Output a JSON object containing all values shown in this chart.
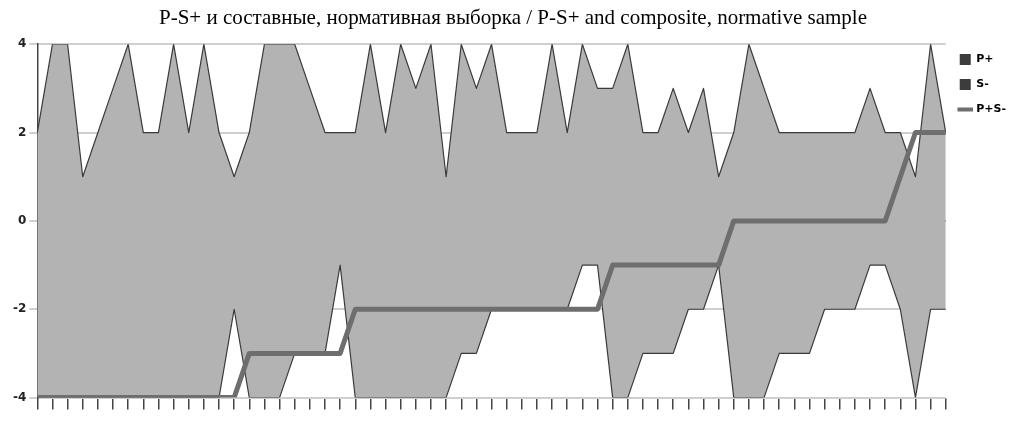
{
  "chart_data": {
    "type": "area",
    "title": "P-S+ и составные, нормативная выборка / P-S+ and composite, normative sample",
    "categories": [
      null,
      null,
      null,
      null,
      null,
      null,
      null,
      null,
      null,
      null,
      null,
      null,
      null,
      null,
      null,
      null,
      null,
      null,
      null,
      null,
      null,
      null,
      null,
      null,
      null,
      null,
      null,
      null,
      null,
      null,
      null,
      null,
      null,
      null,
      null,
      null,
      null,
      null,
      null,
      null,
      null,
      null,
      null,
      null,
      null,
      null,
      null,
      null,
      null,
      null,
      null,
      null,
      null,
      null,
      null,
      null,
      null,
      null,
      null,
      null,
      null
    ],
    "series": [
      {
        "name": "P+",
        "color": "#b3b3b3",
        "values": [
          2,
          4,
          4,
          1,
          2,
          3,
          4,
          2,
          2,
          4,
          2,
          4,
          2,
          1,
          2,
          4,
          4,
          4,
          3,
          2,
          2,
          2,
          4,
          2,
          4,
          3,
          4,
          1,
          4,
          3,
          4,
          2,
          2,
          2,
          4,
          2,
          4,
          3,
          3,
          4,
          2,
          2,
          3,
          2,
          3,
          1,
          2,
          4,
          3,
          2,
          2,
          2,
          2,
          2,
          2,
          3,
          2,
          2,
          1,
          4,
          2
        ]
      },
      {
        "name": "S-",
        "color": "#b3b3b3",
        "values": [
          -4,
          -4,
          -4,
          -4,
          -4,
          -4,
          -4,
          -4,
          -4,
          -4,
          -4,
          -4,
          -4,
          -2,
          -4,
          -4,
          -4,
          -3,
          -3,
          -3,
          -1,
          -4,
          -4,
          -4,
          -4,
          -4,
          -4,
          -4,
          -3,
          -3,
          -2,
          -2,
          -2,
          -2,
          -2,
          -2,
          -1,
          -1,
          -4,
          -4,
          -3,
          -3,
          -3,
          -2,
          -2,
          -1,
          -4,
          -4,
          -4,
          -3,
          -3,
          -3,
          -2,
          -2,
          -2,
          -1,
          -1,
          -2,
          -4,
          -2,
          -2
        ]
      },
      {
        "name": "P+S-",
        "type": "line",
        "color": "#6e6e6e",
        "values": [
          -4,
          -4,
          -4,
          -4,
          -4,
          -4,
          -4,
          -4,
          -4,
          -4,
          -4,
          -4,
          -4,
          -4,
          -3,
          -3,
          -3,
          -3,
          -3,
          -3,
          -3,
          -2,
          -2,
          -2,
          -2,
          -2,
          -2,
          -2,
          -2,
          -2,
          -2,
          -2,
          -2,
          -2,
          -2,
          -2,
          -2,
          -2,
          -1,
          -1,
          -1,
          -1,
          -1,
          -1,
          -1,
          -1,
          0,
          0,
          0,
          0,
          0,
          0,
          0,
          0,
          0,
          0,
          0,
          1,
          2,
          2,
          2
        ]
      }
    ],
    "ylim": [
      -4,
      4
    ],
    "yticks": [
      -4,
      -2,
      0,
      2,
      4
    ],
    "grid": "y",
    "legend": "top right",
    "marker": "none",
    "line_style": "solid"
  }
}
